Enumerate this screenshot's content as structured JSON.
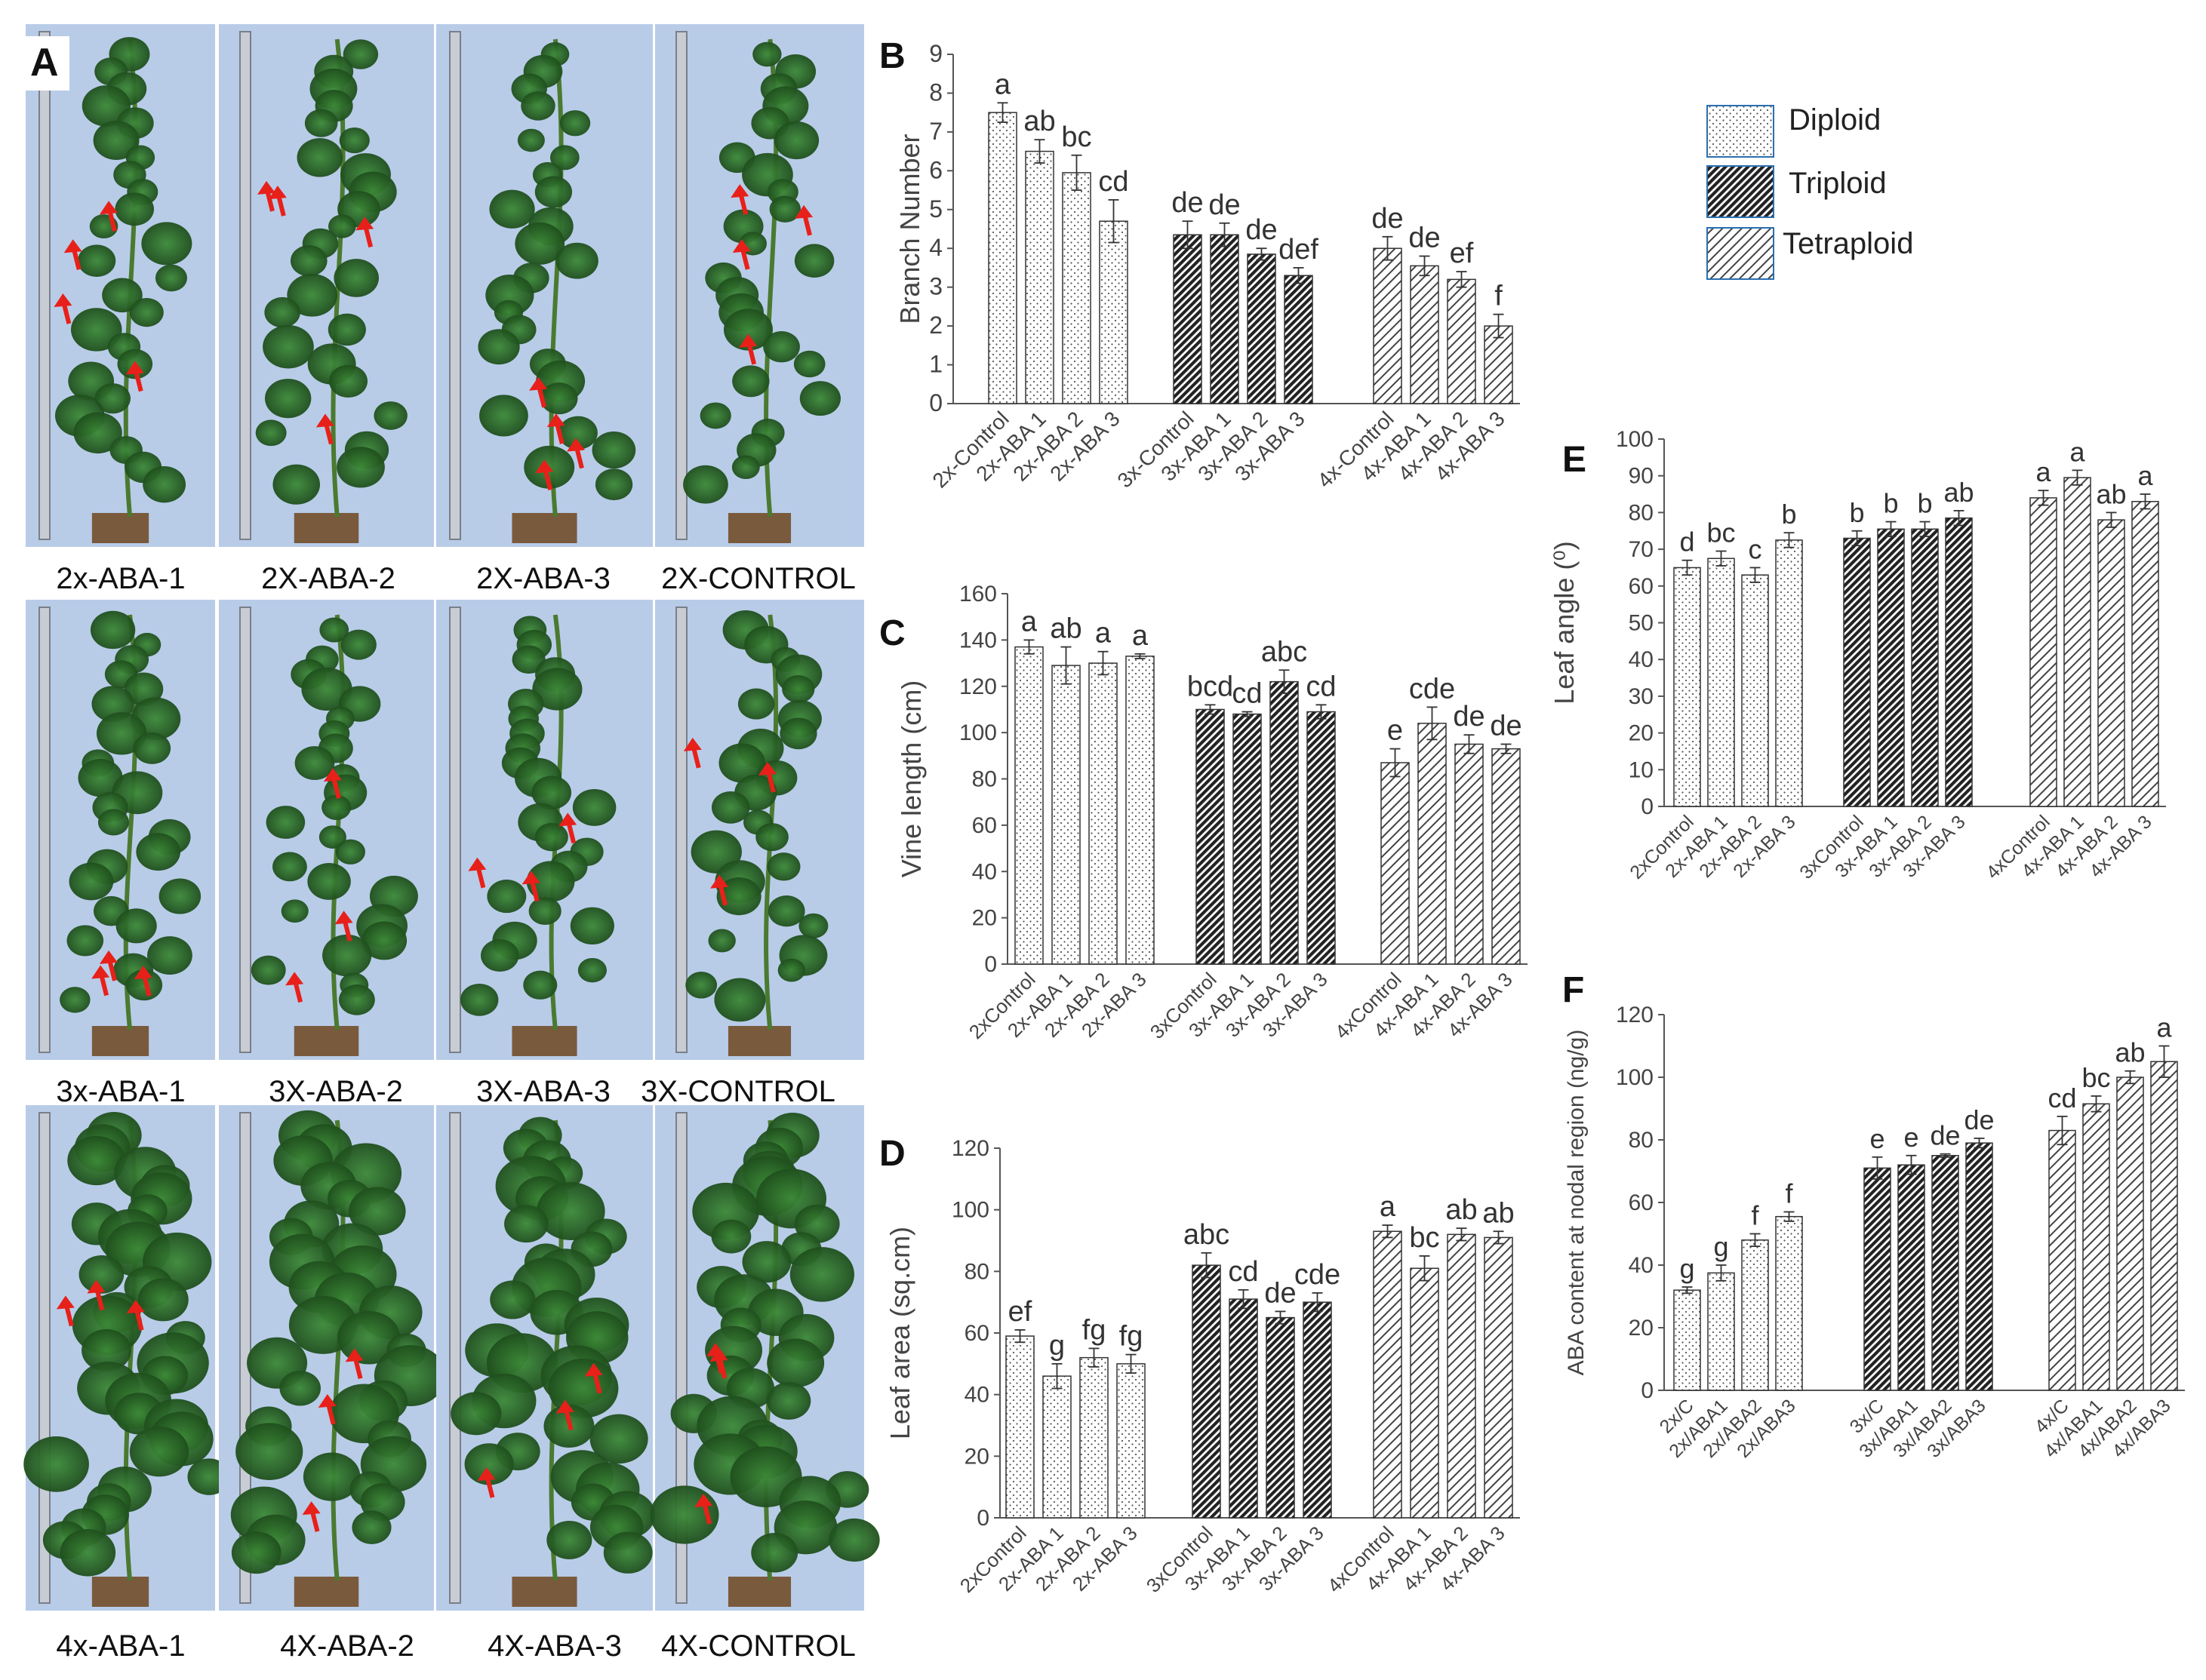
{
  "panel_a": {
    "label": "A",
    "rows": [
      {
        "captions": [
          "2x-ABA-1",
          "2X-ABA-2",
          "2X-ABA-3",
          "2X-CONTROL"
        ]
      },
      {
        "captions": [
          "3x-ABA-1",
          "3X-ABA-2",
          "3X-ABA-3",
          "3X-CONTROL"
        ]
      },
      {
        "captions": [
          "4x-ABA-1",
          "4X-ABA-2",
          "4X-ABA-3",
          "4X-CONTROL"
        ]
      }
    ]
  },
  "legend": {
    "items": [
      {
        "label": "Diploid",
        "pattern": "dots"
      },
      {
        "label": "Triploid",
        "pattern": "dense-hatch"
      },
      {
        "label": "Tetraploid",
        "pattern": "light-hatch"
      }
    ]
  },
  "colors": {
    "bar_stroke": "#333333",
    "axis": "#555555",
    "text": "#444444",
    "arrow": "#e8201a",
    "sky": "#b8cce8",
    "leaf": "#2e6a2a"
  },
  "chart_data": [
    {
      "panel": "B",
      "type": "bar",
      "ylabel": "Branch Number",
      "ylim": [
        0,
        9
      ],
      "yticks": [
        0,
        1,
        2,
        3,
        4,
        5,
        6,
        7,
        8,
        9
      ],
      "groups": [
        {
          "series": "Diploid",
          "categories": [
            "2x-Control",
            "2x-ABA 1",
            "2x-ABA 2",
            "2x-ABA 3"
          ],
          "values": [
            7.5,
            6.5,
            5.95,
            4.7
          ],
          "errors": [
            0.25,
            0.3,
            0.45,
            0.55
          ],
          "letters": [
            "a",
            "ab",
            "bc",
            "cd"
          ]
        },
        {
          "series": "Triploid",
          "categories": [
            "3x-Control",
            "3x-ABA 1",
            "3x-ABA 2",
            "3x-ABA 3"
          ],
          "values": [
            4.35,
            4.35,
            3.85,
            3.3
          ],
          "errors": [
            0.35,
            0.3,
            0.15,
            0.2
          ],
          "letters": [
            "de",
            "de",
            "de",
            "def"
          ]
        },
        {
          "series": "Tetraploid",
          "categories": [
            "4x-Control",
            "4x-ABA 1",
            "4x-ABA 2",
            "4x-ABA 3"
          ],
          "values": [
            4.0,
            3.55,
            3.2,
            2.0
          ],
          "errors": [
            0.3,
            0.25,
            0.2,
            0.3
          ],
          "letters": [
            "de",
            "de",
            "ef",
            "f"
          ]
        }
      ]
    },
    {
      "panel": "C",
      "type": "bar",
      "ylabel": "Vine length (cm)",
      "ylim": [
        0,
        160
      ],
      "yticks": [
        0,
        20,
        40,
        60,
        80,
        100,
        120,
        140,
        160
      ],
      "groups": [
        {
          "series": "Diploid",
          "categories": [
            "2xControl",
            "2x-ABA 1",
            "2x-ABA 2",
            "2x-ABA 3"
          ],
          "values": [
            137,
            129,
            130,
            133
          ],
          "errors": [
            3,
            8,
            5,
            1
          ],
          "letters": [
            "a",
            "ab",
            "a",
            "a"
          ]
        },
        {
          "series": "Triploid",
          "categories": [
            "3xControl",
            "3x-ABA 1",
            "3x-ABA 2",
            "3x-ABA 3"
          ],
          "values": [
            110,
            108,
            122,
            109
          ],
          "errors": [
            2,
            1,
            5,
            3
          ],
          "letters": [
            "bcd",
            "cd",
            "abc",
            "cd"
          ]
        },
        {
          "series": "Tetraploid",
          "categories": [
            "4xControl",
            "4x-ABA 1",
            "4x-ABA 2",
            "4x-ABA 3"
          ],
          "values": [
            87,
            104,
            95,
            93
          ],
          "errors": [
            6,
            7,
            4,
            2
          ],
          "letters": [
            "e",
            "cde",
            "de",
            "de"
          ]
        }
      ]
    },
    {
      "panel": "D",
      "type": "bar",
      "ylabel": "Leaf area (sq.cm)",
      "ylim": [
        0,
        120
      ],
      "yticks": [
        0,
        20,
        40,
        60,
        80,
        100,
        120
      ],
      "groups": [
        {
          "series": "Diploid",
          "categories": [
            "2xControl",
            "2x-ABA 1",
            "2x-ABA 2",
            "2x-ABA 3"
          ],
          "values": [
            59,
            46,
            52,
            50
          ],
          "errors": [
            2,
            4,
            3,
            3
          ],
          "letters": [
            "ef",
            "g",
            "fg",
            "fg"
          ]
        },
        {
          "series": "Triploid",
          "categories": [
            "3xControl",
            "3x-ABA 1",
            "3x-ABA 2",
            "3x-ABA 3"
          ],
          "values": [
            82,
            71,
            65,
            70
          ],
          "errors": [
            4,
            3,
            2,
            3
          ],
          "letters": [
            "abc",
            "cd",
            "de",
            "cde"
          ]
        },
        {
          "series": "Tetraploid",
          "categories": [
            "4xControl",
            "4x-ABA 1",
            "4x-ABA 2",
            "4x-ABA 3"
          ],
          "values": [
            93,
            81,
            92,
            91
          ],
          "errors": [
            2,
            4,
            2,
            2
          ],
          "letters": [
            "a",
            "bc",
            "ab",
            "ab"
          ]
        }
      ]
    },
    {
      "panel": "E",
      "type": "bar",
      "ylabel": "Leaf angle (⁰)",
      "ylim": [
        0,
        100
      ],
      "yticks": [
        0,
        10,
        20,
        30,
        40,
        50,
        60,
        70,
        80,
        90,
        100
      ],
      "groups": [
        {
          "series": "Diploid",
          "categories": [
            "2xControl",
            "2x-ABA 1",
            "2x-ABA 2",
            "2x-ABA 3"
          ],
          "values": [
            65,
            67.5,
            63,
            72.5
          ],
          "errors": [
            2,
            2,
            2,
            2
          ],
          "letters": [
            "d",
            "bc",
            "c",
            "b"
          ]
        },
        {
          "series": "Triploid",
          "categories": [
            "3xControl",
            "3x-ABA 1",
            "3x-ABA 2",
            "3x-ABA 3"
          ],
          "values": [
            73,
            75.5,
            75.5,
            78.5
          ],
          "errors": [
            2,
            2,
            2,
            2
          ],
          "letters": [
            "b",
            "b",
            "b",
            "ab"
          ]
        },
        {
          "series": "Tetraploid",
          "categories": [
            "4xControl",
            "4x-ABA 1",
            "4x-ABA 2",
            "4x-ABA 3"
          ],
          "values": [
            84,
            89.5,
            78,
            83
          ],
          "errors": [
            2,
            2,
            2,
            2
          ],
          "letters": [
            "a",
            "a",
            "ab",
            "a"
          ]
        }
      ]
    },
    {
      "panel": "F",
      "type": "bar",
      "ylabel": "ABA content at nodal region (ng/g)",
      "ylim": [
        0,
        120
      ],
      "yticks": [
        0,
        20,
        40,
        60,
        80,
        100,
        120
      ],
      "groups": [
        {
          "series": "Diploid",
          "categories": [
            "2x/C",
            "2x/ABA1",
            "2x/ABA2",
            "2x/ABA3"
          ],
          "values": [
            32,
            37.5,
            48,
            55.5
          ],
          "errors": [
            1,
            2.5,
            2,
            1.5
          ],
          "letters": [
            "g",
            "g",
            "f",
            "f"
          ]
        },
        {
          "series": "Triploid",
          "categories": [
            "3x/C",
            "3x/ABA1",
            "3x/ABA2",
            "3x/ABA3"
          ],
          "values": [
            71,
            72,
            75,
            79
          ],
          "errors": [
            3.5,
            3,
            0.5,
            1.5
          ],
          "letters": [
            "e",
            "e",
            "de",
            "de"
          ]
        },
        {
          "series": "Tetraploid",
          "categories": [
            "4x/C",
            "4x/ABA1",
            "4x/ABA2",
            "4x/ABA3"
          ],
          "values": [
            83,
            91.5,
            100,
            105
          ],
          "errors": [
            4.5,
            2.5,
            2,
            5
          ],
          "letters": [
            "cd",
            "bc",
            "ab",
            "a"
          ]
        }
      ]
    }
  ]
}
